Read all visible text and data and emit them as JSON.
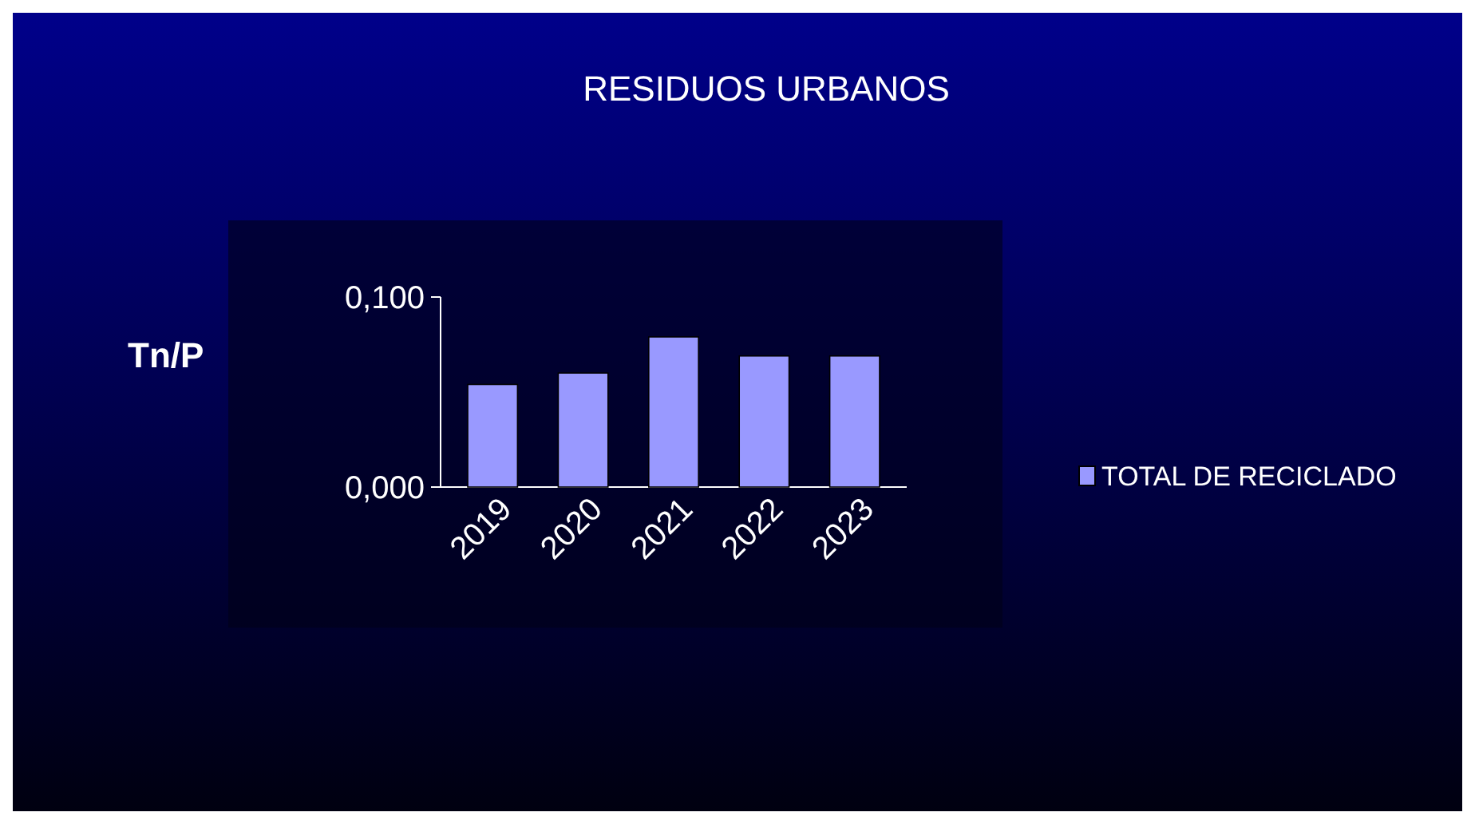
{
  "chart_data": {
    "type": "bar",
    "title": "RESIDUOS URBANOS",
    "ylabel": "Tn/P",
    "categories": [
      "2019",
      "2020",
      "2021",
      "2022",
      "2023"
    ],
    "series": [
      {
        "name": "TOTAL DE RECICLADO",
        "color": "#9999ff",
        "values": [
          0.054,
          0.06,
          0.079,
          0.069,
          0.069
        ]
      }
    ],
    "ylim": [
      0,
      0.1
    ],
    "yticks": [
      {
        "value": 0,
        "label": "0,000"
      },
      {
        "value": 0.1,
        "label": "0,100"
      }
    ],
    "grid": false,
    "legend": "right"
  }
}
